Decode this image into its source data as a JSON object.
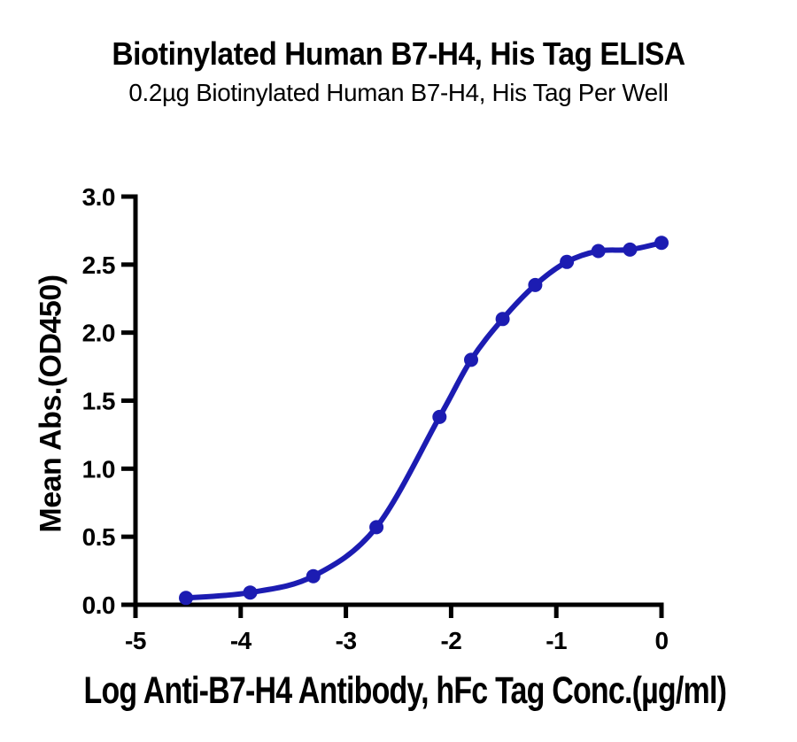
{
  "chart_data": {
    "type": "line",
    "title": "Biotinylated Human B7-H4, His Tag ELISA",
    "subtitle": "0.2µg Biotinylated Human B7-H4, His Tag Per Well",
    "xlabel": "Log Anti-B7-H4 Antibody, hFc Tag Conc.(µg/ml)",
    "ylabel": "Mean Abs.(OD450)",
    "xlim": [
      -5,
      0
    ],
    "ylim": [
      0,
      3
    ],
    "xticks": [
      -5,
      -4,
      -3,
      -2,
      -1,
      0
    ],
    "xticklabels": [
      "-5",
      "-4",
      "-3",
      "-2",
      "-1",
      "0"
    ],
    "yticks": [
      0,
      0.5,
      1,
      1.5,
      2,
      2.5,
      3
    ],
    "yticklabels": [
      "0.0",
      "0.5",
      "1.0",
      "1.5",
      "2.0",
      "2.5",
      "3.0"
    ],
    "grid": false,
    "legend": "none",
    "series": [
      {
        "name": "Biotinylated Human B7-H4, His Tag",
        "x": [
          -4.52,
          -3.91,
          -3.31,
          -2.71,
          -2.11,
          -1.81,
          -1.51,
          -1.2,
          -0.9,
          -0.6,
          -0.3,
          0.0
        ],
        "y": [
          0.05,
          0.09,
          0.21,
          0.57,
          1.38,
          1.8,
          2.1,
          2.35,
          2.52,
          2.6,
          2.61,
          2.66
        ],
        "marker": "circle",
        "curve": "sigmoid-smooth",
        "color": "#1c1cb2"
      }
    ],
    "colors": {
      "curve": "#1c1cb2",
      "axis": "#000000",
      "text": "#000000",
      "background": "#ffffff"
    }
  }
}
